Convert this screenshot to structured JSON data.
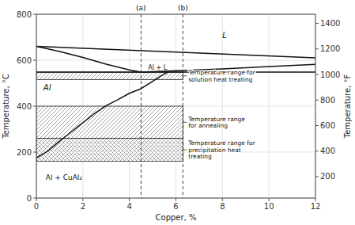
{
  "chart_data": {
    "type": "line",
    "xlabel": "Copper, %",
    "ylabel": "Temperature, °C",
    "y2label": "Temperature, °F",
    "xlim": [
      0,
      12
    ],
    "ylim": [
      0,
      800
    ],
    "y2lim": [
      32,
      1472
    ],
    "xticks": [
      0,
      2,
      4,
      6,
      8,
      10,
      12
    ],
    "yticks": [
      0,
      200,
      400,
      600,
      800
    ],
    "y2ticks": [
      200,
      400,
      600,
      800,
      1000,
      1200,
      1400
    ],
    "grid": true,
    "series": [
      {
        "x": [
          0,
          12
        ],
        "values": [
          660,
          610
        ]
      },
      {
        "x": [
          0,
          1,
          2,
          3,
          4,
          4.5
        ],
        "values": [
          660,
          638,
          612,
          583,
          558,
          548
        ]
      },
      {
        "x": [
          4.5,
          6,
          8,
          10,
          12
        ],
        "values": [
          548,
          554,
          562,
          572,
          582
        ]
      },
      {
        "x": [
          0,
          0.5,
          1.0,
          1.5,
          2.0,
          2.5,
          3.0,
          3.5,
          4.0,
          4.5,
          5.0,
          5.3,
          5.5,
          5.65
        ],
        "values": [
          175,
          205,
          248,
          288,
          328,
          368,
          402,
          428,
          456,
          476,
          508,
          528,
          540,
          548
        ]
      }
    ],
    "hlines": [
      548
    ],
    "vlines": [
      {
        "x": 4.5,
        "label": "(a)"
      },
      {
        "x": 6.3,
        "label": "(b)"
      }
    ],
    "bands": [
      {
        "label": "Temperature range for\nsolution heat treating",
        "ymin": 516,
        "ymax": 548,
        "x": [
          0,
          6.3
        ]
      },
      {
        "label": "Temperature range\nfor annealing",
        "ymin": 260,
        "ymax": 400,
        "x": [
          0,
          6.3
        ]
      },
      {
        "label": "Temperature range for\nprecipitation heat\ntreating",
        "ymin": 160,
        "ymax": 260,
        "x": [
          0,
          6.3
        ]
      }
    ],
    "annotations": [
      "Al",
      "L",
      "Al + L",
      "Al + CuAl₂"
    ]
  }
}
